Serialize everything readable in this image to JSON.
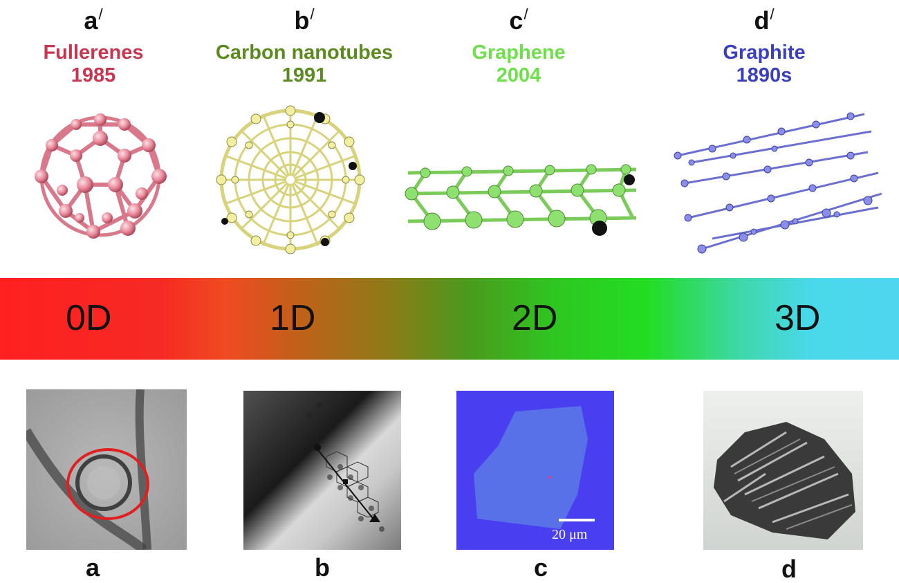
{
  "columns": [
    {
      "letter": "a",
      "prime": "/",
      "name": "Fullerenes",
      "year": "1985",
      "color": "#c8374f"
    },
    {
      "letter": "b",
      "prime": "/",
      "name": "Carbon nanotubes",
      "year": "1991",
      "color": "#5b8a1e"
    },
    {
      "letter": "c",
      "prime": "/",
      "name": "Graphene",
      "year": "2004",
      "color": "#6ee04a"
    },
    {
      "letter": "d",
      "prime": "/",
      "name": "Graphite",
      "year": "1890s",
      "color": "#3a3fc0"
    }
  ],
  "dimensions": [
    "0D",
    "1D",
    "2D",
    "3D"
  ],
  "bottom_labels": [
    "a",
    "b",
    "c",
    "d"
  ],
  "scale_bar": "20 μm",
  "colors": {
    "fullerene": "#e88a9a",
    "nanotube": "#f2f0a0",
    "graphene": "#8ee070",
    "graphite": "#8a8ee8",
    "circle": "#e02020",
    "optical_bg": "#4a3ff0"
  }
}
